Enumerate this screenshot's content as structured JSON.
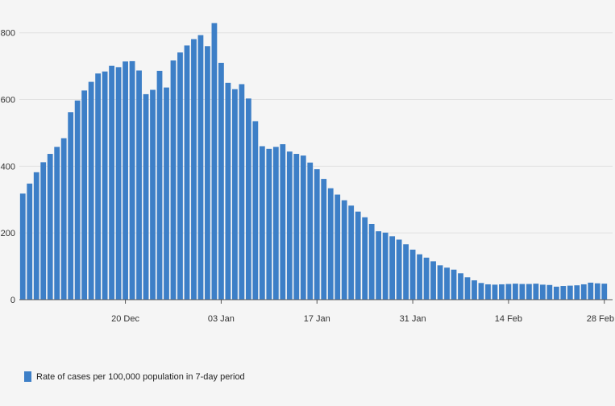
{
  "chart_data": {
    "type": "bar",
    "title": "",
    "xlabel": "",
    "ylabel": "",
    "ylim": [
      0,
      850
    ],
    "yticks": [
      "0",
      "200",
      "400",
      "600",
      "800"
    ],
    "xtick_labels": [
      {
        "label": "20 Dec",
        "index": 15
      },
      {
        "label": "03 Jan",
        "index": 29
      },
      {
        "label": "17 Jan",
        "index": 43
      },
      {
        "label": "31 Jan",
        "index": 57
      },
      {
        "label": "14 Feb",
        "index": 71
      },
      {
        "label": "28 Feb",
        "index": 85
      }
    ],
    "grid": true,
    "legend_position": "bottom-left",
    "series": [
      {
        "name": "Rate of cases per 100,000 population in 7-day period",
        "color": "#3d7fc7",
        "values": [
          318,
          348,
          382,
          412,
          437,
          458,
          484,
          562,
          597,
          627,
          653,
          678,
          684,
          701,
          697,
          714,
          715,
          687,
          616,
          629,
          686,
          636,
          717,
          741,
          762,
          781,
          793,
          760,
          829,
          710,
          650,
          631,
          646,
          603,
          535,
          460,
          452,
          458,
          466,
          444,
          437,
          432,
          411,
          391,
          362,
          334,
          315,
          298,
          282,
          264,
          247,
          227,
          205,
          201,
          190,
          180,
          166,
          150,
          136,
          126,
          115,
          103,
          96,
          90,
          79,
          67,
          58,
          50,
          46,
          45,
          46,
          47,
          48,
          47,
          47,
          48,
          45,
          44,
          39,
          41,
          42,
          43,
          46,
          51,
          49,
          48
        ]
      }
    ]
  }
}
